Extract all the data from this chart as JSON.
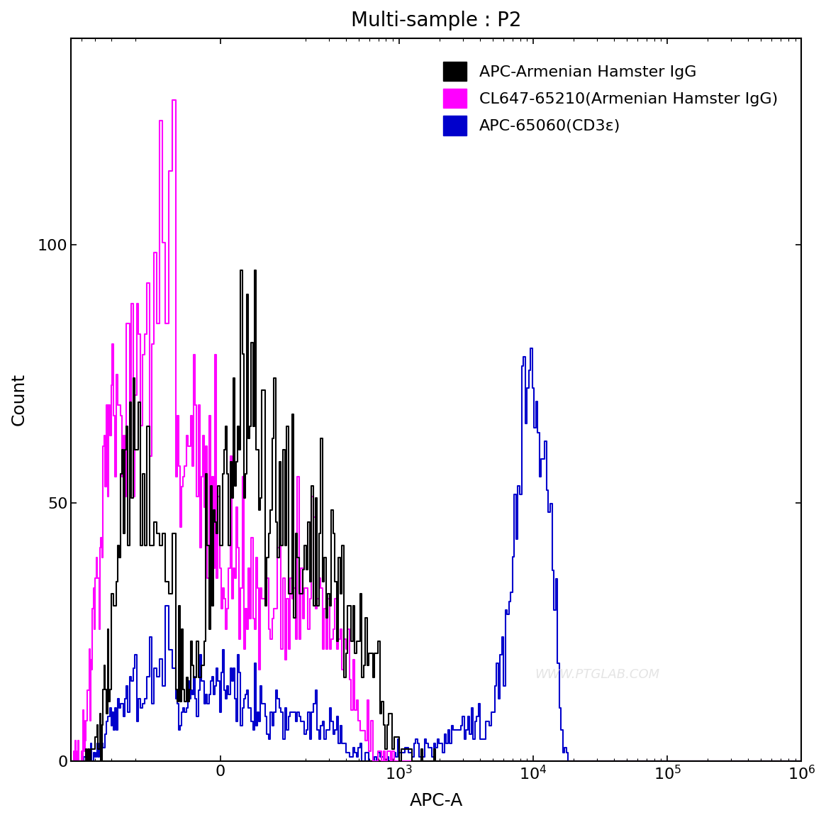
{
  "title": "Multi-sample : P2",
  "xlabel": "APC-A",
  "ylabel": "Count",
  "ylim": [
    0,
    140
  ],
  "yticks": [
    0,
    50,
    100
  ],
  "background_color": "#ffffff",
  "legend_entries": [
    {
      "label": "APC-Armenian Hamster IgG",
      "color": "#000000"
    },
    {
      "label": "CL647-65210(Armenian Hamster IgG)",
      "color": "#ff00ff"
    },
    {
      "label": "APC-65060(CD3ε)",
      "color": "#0000cc"
    }
  ],
  "watermark": "WWW.PTGLAB.COM",
  "title_fontsize": 20,
  "axis_fontsize": 18,
  "tick_fontsize": 16,
  "legend_fontsize": 16,
  "linthresh": 100,
  "linscale": 0.3,
  "xlim_left": -600,
  "xlim_right": 1000000
}
